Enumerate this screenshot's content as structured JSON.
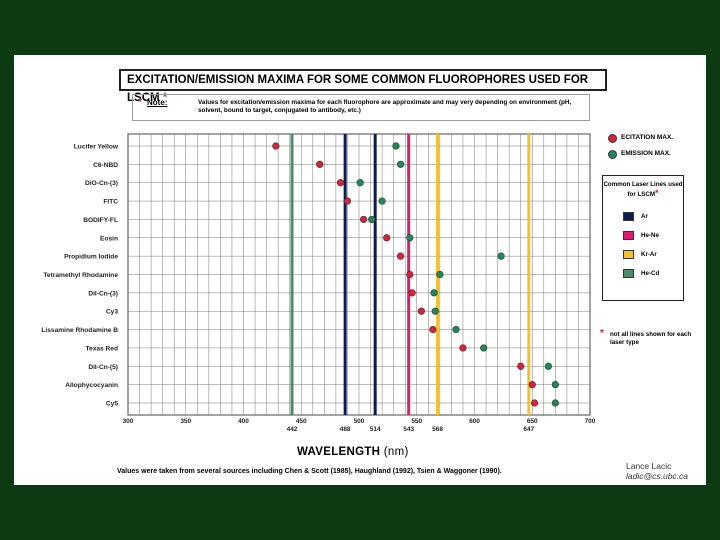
{
  "title": "EXCITATION/EMISSION MAXIMA FOR SOME COMMON FLUOROPHORES USED FOR LSCM",
  "title_star": "*",
  "note": {
    "star": "*",
    "label": "Note:",
    "text": "Values for excitation/emission maxima for each fluorophore are approximate and may very depending on environment (pH, solvent, bound to target, conjugated to antibody, etc.)"
  },
  "legend": {
    "excitation_label": "ECITATION MAX.",
    "emission_label": "EMISSION MAX.",
    "laser_box_title": "Common Laser Lines used for LSCM",
    "laser_box_star": "*",
    "lasers": [
      {
        "name": "Ar",
        "color": "#0d1b4f"
      },
      {
        "name": "He-Ne",
        "color": "#d6206f"
      },
      {
        "name": "Kr-Ar",
        "color": "#f2c12e"
      },
      {
        "name": "He-Cd",
        "color": "#4f8a6e"
      }
    ],
    "laser_note_star": "*",
    "laser_note": "not all lines shown for each laser type"
  },
  "x_axis_label": "WAVELENGTH",
  "x_axis_unit": "(nm)",
  "sources": "Values were taken from several sources including Chen & Scott (1985), Haughland (1992), Tsien & Waggoner (1990).",
  "author": {
    "name": "Lance Lacic",
    "email": "ladic@cs.ubc.ca"
  },
  "chart_data": {
    "type": "scatter",
    "title": "EXCITATION/EMISSION MAXIMA FOR SOME COMMON FLUOROPHORES USED FOR LSCM",
    "xlabel": "WAVELENGTH (nm)",
    "xlim": [
      300,
      700
    ],
    "x_ticks": [
      300,
      350,
      400,
      450,
      500,
      550,
      600,
      650,
      700
    ],
    "grid": true,
    "legend_position": "right",
    "colors": {
      "excitation": "#d9223a",
      "emission": "#1f8a57"
    },
    "categories": [
      "Lucifer Yellow",
      "C6-NBD",
      "DiO-Cn-(3)",
      "FITC",
      "BODIFY-FL",
      "Eosin",
      "Propidium Iodide",
      "Tetramethyl Rhodamine",
      "DiI-Cn-(3)",
      "Cy3",
      "Lissamine Rhodamine B",
      "Texas Red",
      "DiI-Cn-(5)",
      "Allophycocyanin",
      "Cy5"
    ],
    "series": [
      {
        "name": "ECITATION MAX.",
        "values": [
          428,
          466,
          484,
          490,
          504,
          524,
          536,
          544,
          546,
          554,
          564,
          590,
          640,
          650,
          652
        ]
      },
      {
        "name": "EMISSION MAX.",
        "values": [
          532,
          536,
          501,
          520,
          511,
          544,
          623,
          570,
          565,
          566,
          584,
          608,
          664,
          670,
          670
        ]
      }
    ],
    "laser_lines": [
      {
        "label": "442",
        "x": 442,
        "laser": "He-Cd",
        "color": "#4f8a6e"
      },
      {
        "label": "488",
        "x": 488,
        "laser": "Ar",
        "color": "#0d1b4f"
      },
      {
        "label": "514",
        "x": 514,
        "laser": "Ar",
        "color": "#0d1b4f"
      },
      {
        "label": "543",
        "x": 543,
        "laser": "He-Ne",
        "color": "#d6206f"
      },
      {
        "label": "568",
        "x": 568,
        "laser": "Kr-Ar",
        "color": "#f2c12e"
      },
      {
        "label": "647",
        "x": 647,
        "laser": "Kr-Ar",
        "color": "#f2c12e"
      }
    ]
  }
}
